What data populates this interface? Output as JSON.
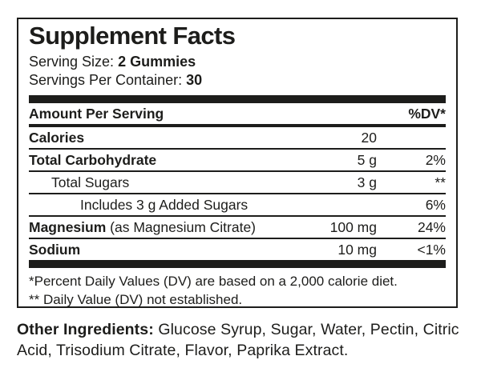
{
  "panel": {
    "title": "Supplement Facts",
    "serving_size_label": "Serving Size: ",
    "serving_size_value": "2 Gummies",
    "servings_per_container_label": "Servings Per Container: ",
    "servings_per_container_value": "30",
    "header": {
      "amount_per_serving": "Amount Per Serving",
      "dv": "%DV*"
    },
    "rows": [
      {
        "name": "Calories",
        "suffix": "",
        "amount": "20",
        "dv": ""
      },
      {
        "name": "Total Carbohydrate",
        "suffix": "",
        "amount": "5 g",
        "dv": "2%"
      },
      {
        "name": "Total Sugars",
        "suffix": "",
        "amount": "3 g",
        "dv": "**"
      },
      {
        "name": "Includes 3 g Added Sugars",
        "suffix": "",
        "amount": "",
        "dv": "6%"
      },
      {
        "name": "Magnesium",
        "suffix": " (as Magnesium Citrate)",
        "amount": "100 mg",
        "dv": "24%"
      },
      {
        "name": "Sodium",
        "suffix": "",
        "amount": "10 mg",
        "dv": "<1%"
      }
    ],
    "footnotes": [
      "*Percent Daily Values (DV) are based on a 2,000 calorie diet.",
      "** Daily Value (DV) not established."
    ]
  },
  "other_ingredients": {
    "label": "Other Ingredients:",
    "text": " Glucose Syrup, Sugar, Water, Pectin, Citric Acid, Trisodium Citrate, Flavor, Paprika Extract."
  },
  "colors": {
    "ink": "#1d1d1b",
    "background": "#ffffff"
  }
}
